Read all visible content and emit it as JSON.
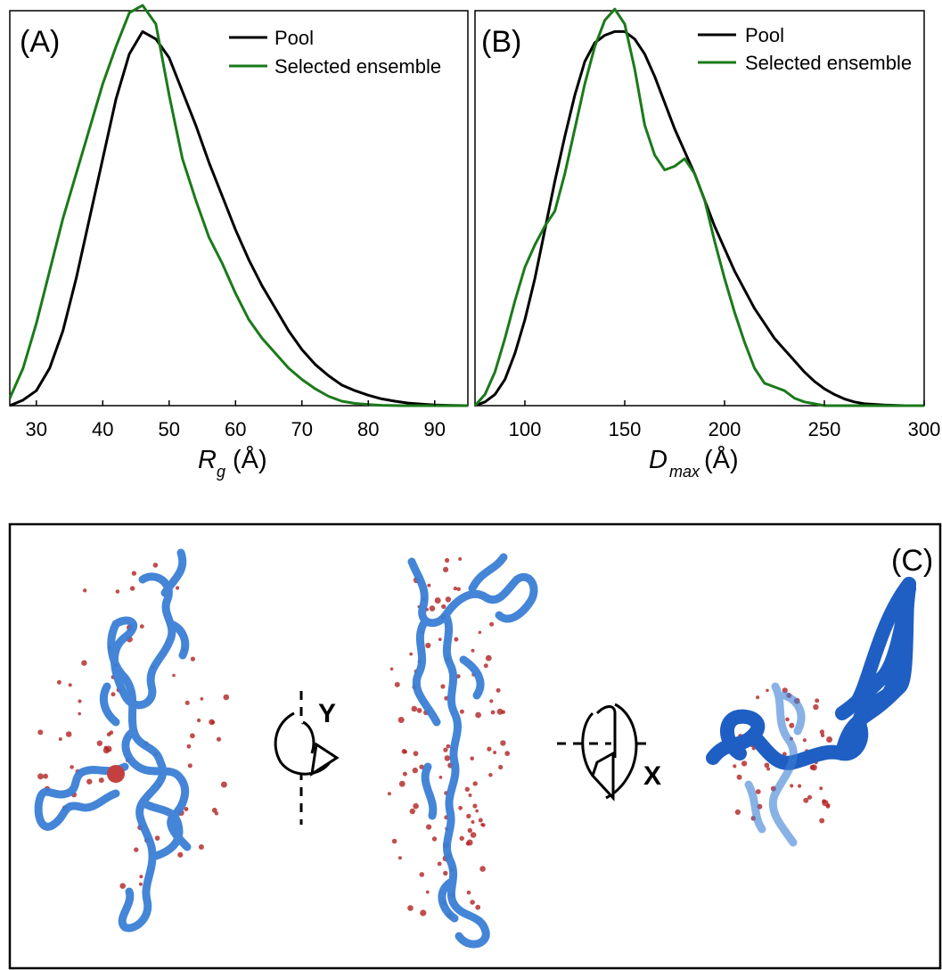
{
  "colors": {
    "pool": "#000000",
    "selected": "#1a7a1a",
    "frame": "#000000",
    "molecule": "#3a7fd5",
    "molecule_dark": "#1f5fc4",
    "water": "#b22222"
  },
  "chart_data": [
    {
      "type": "line",
      "panel_label": "(A)",
      "xlabel_main": "R",
      "xlabel_sub": "g",
      "xlabel_unit": "(Å)",
      "xlim": [
        26,
        95
      ],
      "ylim": [
        0,
        1.02
      ],
      "xticks": [
        30,
        40,
        50,
        60,
        70,
        80,
        90
      ],
      "yaxis_ticks": false,
      "legend_position": "top-right",
      "series": [
        {
          "name": "Pool",
          "color": "#000000",
          "x": [
            26,
            28,
            30,
            32,
            34,
            36,
            38,
            40,
            42,
            44,
            46,
            48,
            50,
            52,
            54,
            56,
            58,
            60,
            62,
            64,
            66,
            68,
            70,
            72,
            74,
            76,
            78,
            80,
            82,
            84,
            86,
            88,
            90,
            92,
            95
          ],
          "y": [
            0.0,
            0.015,
            0.04,
            0.1,
            0.2,
            0.34,
            0.5,
            0.66,
            0.82,
            0.94,
            1.0,
            0.98,
            0.93,
            0.84,
            0.75,
            0.65,
            0.56,
            0.47,
            0.39,
            0.32,
            0.26,
            0.2,
            0.15,
            0.11,
            0.08,
            0.055,
            0.04,
            0.028,
            0.018,
            0.012,
            0.007,
            0.004,
            0.002,
            0.001,
            0.0
          ]
        },
        {
          "name": "Selected ensemble",
          "color": "#1a7a1a",
          "x": [
            26,
            28,
            30,
            32,
            34,
            36,
            38,
            40,
            42,
            44,
            45,
            46,
            48,
            50,
            52,
            54,
            56,
            58,
            60,
            62,
            64,
            66,
            68,
            70,
            72,
            74,
            76,
            78,
            80,
            82,
            85,
            88,
            92,
            95
          ],
          "y": [
            0.02,
            0.1,
            0.22,
            0.36,
            0.5,
            0.62,
            0.74,
            0.86,
            0.96,
            1.05,
            1.06,
            1.07,
            1.02,
            0.83,
            0.66,
            0.55,
            0.45,
            0.38,
            0.3,
            0.23,
            0.18,
            0.14,
            0.1,
            0.07,
            0.045,
            0.025,
            0.012,
            0.006,
            0.003,
            0.001,
            0.0,
            0.0,
            0.0,
            0.0
          ]
        }
      ]
    },
    {
      "type": "line",
      "panel_label": "(B)",
      "xlabel_main": "D",
      "xlabel_sub": "max",
      "xlabel_unit": "(Å)",
      "xlim": [
        75,
        300
      ],
      "ylim": [
        0,
        1.02
      ],
      "xticks": [
        100,
        150,
        200,
        250,
        300
      ],
      "yaxis_ticks": false,
      "legend_position": "top-right",
      "series": [
        {
          "name": "Pool",
          "color": "#000000",
          "x": [
            75,
            80,
            85,
            90,
            95,
            100,
            105,
            110,
            115,
            120,
            125,
            130,
            135,
            140,
            145,
            150,
            155,
            160,
            165,
            170,
            175,
            180,
            185,
            190,
            195,
            200,
            205,
            210,
            215,
            220,
            225,
            230,
            235,
            240,
            245,
            250,
            255,
            260,
            265,
            270,
            280,
            290,
            300
          ],
          "y": [
            0.0,
            0.01,
            0.03,
            0.07,
            0.14,
            0.23,
            0.34,
            0.47,
            0.6,
            0.72,
            0.83,
            0.92,
            0.97,
            0.99,
            1.0,
            1.0,
            0.98,
            0.94,
            0.88,
            0.81,
            0.74,
            0.68,
            0.62,
            0.55,
            0.48,
            0.42,
            0.36,
            0.31,
            0.26,
            0.22,
            0.18,
            0.15,
            0.12,
            0.09,
            0.065,
            0.045,
            0.03,
            0.018,
            0.01,
            0.005,
            0.002,
            0.0,
            0.0
          ]
        },
        {
          "name": "Selected ensemble",
          "color": "#1a7a1a",
          "x": [
            75,
            80,
            85,
            90,
            95,
            100,
            105,
            110,
            115,
            120,
            125,
            130,
            135,
            140,
            145,
            150,
            155,
            160,
            165,
            170,
            175,
            180,
            185,
            190,
            195,
            200,
            205,
            210,
            215,
            220,
            225,
            230,
            235,
            240,
            245,
            250,
            255,
            260,
            270,
            280,
            300
          ],
          "y": [
            0.0,
            0.03,
            0.09,
            0.18,
            0.28,
            0.37,
            0.43,
            0.48,
            0.52,
            0.62,
            0.74,
            0.86,
            0.96,
            1.03,
            1.06,
            1.02,
            0.9,
            0.75,
            0.67,
            0.63,
            0.64,
            0.66,
            0.62,
            0.55,
            0.44,
            0.34,
            0.25,
            0.17,
            0.1,
            0.06,
            0.05,
            0.04,
            0.02,
            0.01,
            0.005,
            0.0,
            0.0,
            0.0,
            0.0,
            0.0,
            0.0
          ]
        }
      ]
    }
  ],
  "panel_c": {
    "label": "(C)",
    "axis_y_label": "Y",
    "axis_x_label": "X"
  }
}
